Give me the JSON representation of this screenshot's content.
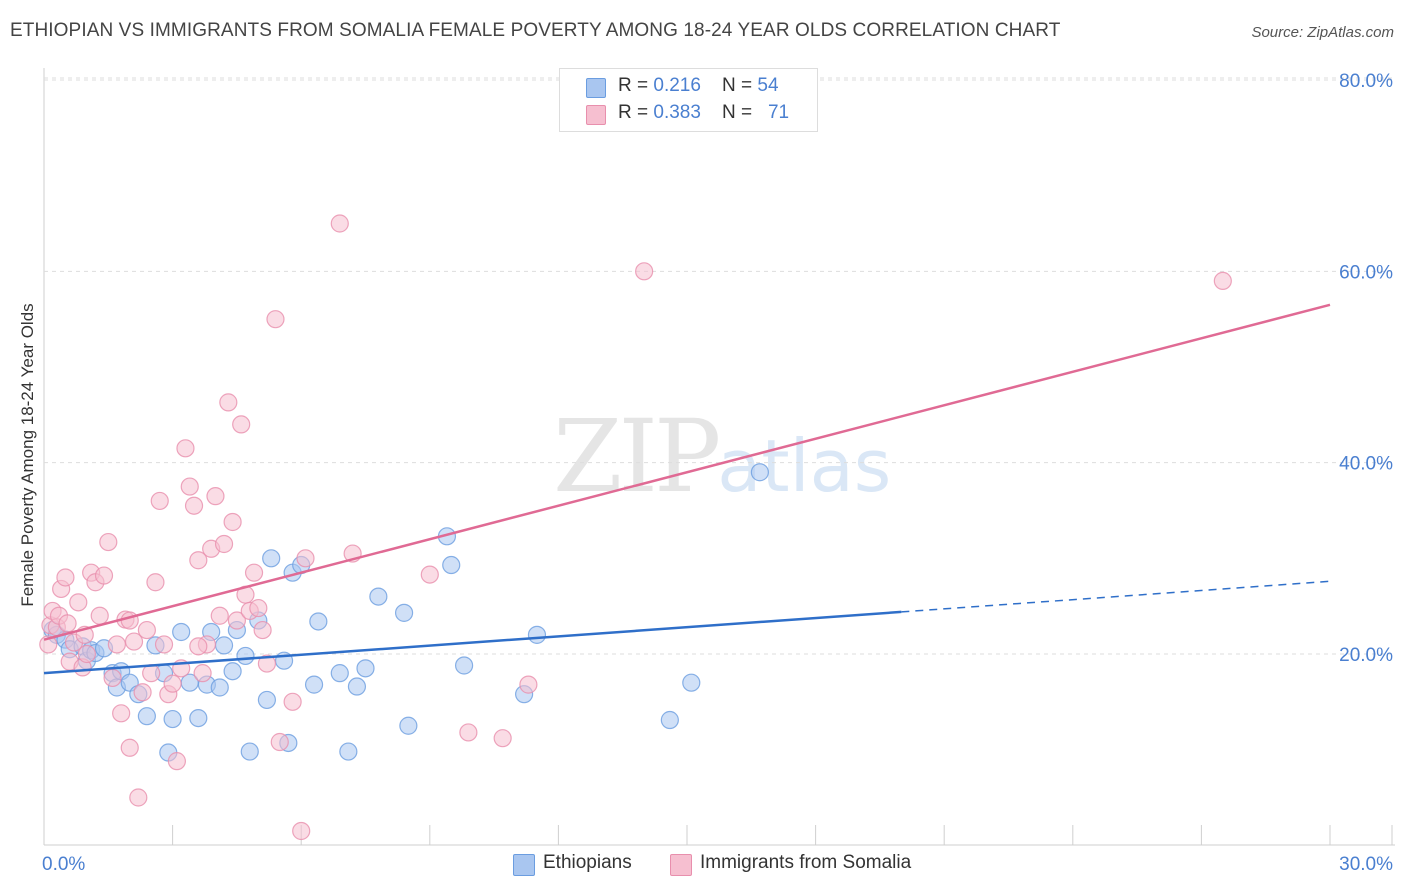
{
  "title": "ETHIOPIAN VS IMMIGRANTS FROM SOMALIA FEMALE POVERTY AMONG 18-24 YEAR OLDS CORRELATION CHART",
  "source": "Source: ZipAtlas.com",
  "watermark": {
    "zip": "ZIP",
    "atlas": "atlas"
  },
  "legend_top": {
    "rows": [
      {
        "r_label": "R = ",
        "r_value": "0.216",
        "n_label": "N = ",
        "n_value": "54"
      },
      {
        "r_label": "R = ",
        "r_value": "0.383",
        "n_label": "N = ",
        "n_value": "71"
      }
    ]
  },
  "colors": {
    "ethiopians_fill": "#a9c6f0",
    "ethiopians_stroke": "#6b9de0",
    "ethiopians_line": "#2f6fc9",
    "somalia_fill": "#f6bfd0",
    "somalia_stroke": "#e88fad",
    "somalia_line": "#e06a94",
    "tick_label": "#4a7fd0",
    "grid": "#dddddd"
  },
  "chart_data": {
    "type": "scatter",
    "title": "ETHIOPIAN VS IMMIGRANTS FROM SOMALIA FEMALE POVERTY AMONG 18-24 YEAR OLDS CORRELATION CHART",
    "xlabel": "",
    "ylabel": "Female Poverty Among 18-24 Year Olds",
    "xlim": [
      0,
      30
    ],
    "ylim": [
      0,
      82
    ],
    "x_tick_labels": [
      {
        "value": 0,
        "label": "0.0%"
      },
      {
        "value": 30,
        "label": "30.0%"
      }
    ],
    "y_tick_labels": [
      {
        "value": 20,
        "label": "20.0%"
      },
      {
        "value": 40,
        "label": "40.0%"
      },
      {
        "value": 60,
        "label": "60.0%"
      },
      {
        "value": 80,
        "label": "80.0%"
      }
    ],
    "y_grid": [
      20,
      40,
      60,
      80
    ],
    "series": [
      {
        "name": "Ethiopians",
        "r": 0.216,
        "n": 54,
        "trend": {
          "x0": 0,
          "y0": 18.0,
          "x1": 20,
          "y1": 24.4,
          "dash_to_x": 30,
          "dash_to_y": 27.6
        },
        "points": [
          [
            0.2,
            22.5
          ],
          [
            0.3,
            22.0
          ],
          [
            0.5,
            21.5
          ],
          [
            0.6,
            20.5
          ],
          [
            0.9,
            20.8
          ],
          [
            1.0,
            19.3
          ],
          [
            1.1,
            20.4
          ],
          [
            1.2,
            20.1
          ],
          [
            1.4,
            20.6
          ],
          [
            1.6,
            18.0
          ],
          [
            1.7,
            16.5
          ],
          [
            1.8,
            18.2
          ],
          [
            2.0,
            17.0
          ],
          [
            2.2,
            15.8
          ],
          [
            2.4,
            13.5
          ],
          [
            2.6,
            20.9
          ],
          [
            2.8,
            18.0
          ],
          [
            2.9,
            9.7
          ],
          [
            3.0,
            13.2
          ],
          [
            3.2,
            22.3
          ],
          [
            3.4,
            17.0
          ],
          [
            3.6,
            13.3
          ],
          [
            3.8,
            16.8
          ],
          [
            3.9,
            22.3
          ],
          [
            4.1,
            16.5
          ],
          [
            4.2,
            20.9
          ],
          [
            4.4,
            18.2
          ],
          [
            4.5,
            22.5
          ],
          [
            4.7,
            19.8
          ],
          [
            4.8,
            9.8
          ],
          [
            5.0,
            23.5
          ],
          [
            5.2,
            15.2
          ],
          [
            5.3,
            30.0
          ],
          [
            5.6,
            19.3
          ],
          [
            5.7,
            10.7
          ],
          [
            5.8,
            28.5
          ],
          [
            6.0,
            29.3
          ],
          [
            6.3,
            16.8
          ],
          [
            6.4,
            23.4
          ],
          [
            6.9,
            18.0
          ],
          [
            7.1,
            9.8
          ],
          [
            7.3,
            16.6
          ],
          [
            7.5,
            18.5
          ],
          [
            7.8,
            26.0
          ],
          [
            8.4,
            24.3
          ],
          [
            8.5,
            12.5
          ],
          [
            9.4,
            32.3
          ],
          [
            9.5,
            29.3
          ],
          [
            9.8,
            18.8
          ],
          [
            11.2,
            15.8
          ],
          [
            11.5,
            22.0
          ],
          [
            14.6,
            13.1
          ],
          [
            15.1,
            17.0
          ],
          [
            16.7,
            39.0
          ]
        ]
      },
      {
        "name": "Immigrants from Somalia",
        "r": 0.383,
        "n": 71,
        "trend": {
          "x0": 0,
          "y0": 21.5,
          "x1": 30,
          "y1": 56.5
        },
        "points": [
          [
            0.1,
            21.0
          ],
          [
            0.15,
            23.0
          ],
          [
            0.2,
            24.5
          ],
          [
            0.3,
            22.8
          ],
          [
            0.35,
            24.0
          ],
          [
            0.4,
            26.8
          ],
          [
            0.5,
            28.0
          ],
          [
            0.55,
            23.2
          ],
          [
            0.6,
            19.2
          ],
          [
            0.7,
            21.2
          ],
          [
            0.8,
            25.4
          ],
          [
            0.9,
            18.6
          ],
          [
            0.95,
            22.0
          ],
          [
            1.0,
            20.0
          ],
          [
            1.1,
            28.5
          ],
          [
            1.2,
            27.5
          ],
          [
            1.3,
            24.0
          ],
          [
            1.4,
            28.2
          ],
          [
            1.5,
            31.7
          ],
          [
            1.6,
            17.5
          ],
          [
            1.7,
            21.0
          ],
          [
            1.8,
            13.8
          ],
          [
            1.9,
            23.6
          ],
          [
            2.0,
            10.2
          ],
          [
            2.1,
            21.3
          ],
          [
            2.2,
            5.0
          ],
          [
            2.3,
            16.0
          ],
          [
            2.4,
            22.5
          ],
          [
            2.5,
            18.0
          ],
          [
            2.6,
            27.5
          ],
          [
            2.7,
            36.0
          ],
          [
            2.8,
            21.0
          ],
          [
            2.9,
            15.8
          ],
          [
            3.0,
            16.9
          ],
          [
            3.1,
            8.8
          ],
          [
            3.2,
            18.5
          ],
          [
            3.3,
            41.5
          ],
          [
            3.4,
            37.5
          ],
          [
            3.5,
            35.5
          ],
          [
            3.6,
            29.8
          ],
          [
            3.7,
            18.0
          ],
          [
            3.8,
            21.0
          ],
          [
            3.9,
            31.0
          ],
          [
            4.0,
            36.5
          ],
          [
            4.1,
            24.0
          ],
          [
            4.2,
            31.5
          ],
          [
            4.3,
            46.3
          ],
          [
            4.4,
            33.8
          ],
          [
            4.5,
            23.5
          ],
          [
            4.6,
            44.0
          ],
          [
            4.7,
            26.2
          ],
          [
            4.8,
            24.5
          ],
          [
            4.9,
            28.5
          ],
          [
            5.0,
            24.8
          ],
          [
            5.1,
            22.5
          ],
          [
            5.2,
            19.0
          ],
          [
            5.4,
            55.0
          ],
          [
            5.5,
            10.8
          ],
          [
            5.8,
            15.0
          ],
          [
            6.0,
            1.5
          ],
          [
            6.1,
            30.0
          ],
          [
            6.9,
            65.0
          ],
          [
            7.2,
            30.5
          ],
          [
            9.0,
            28.3
          ],
          [
            9.9,
            11.8
          ],
          [
            10.7,
            11.2
          ],
          [
            11.3,
            16.8
          ],
          [
            14.0,
            60.0
          ],
          [
            27.5,
            59.0
          ],
          [
            3.6,
            20.8
          ],
          [
            2.0,
            23.5
          ]
        ]
      }
    ],
    "legend": [
      {
        "label": "Ethiopians"
      },
      {
        "label": "Immigrants from Somalia"
      }
    ],
    "legend_placement": "top-center and bottom"
  }
}
